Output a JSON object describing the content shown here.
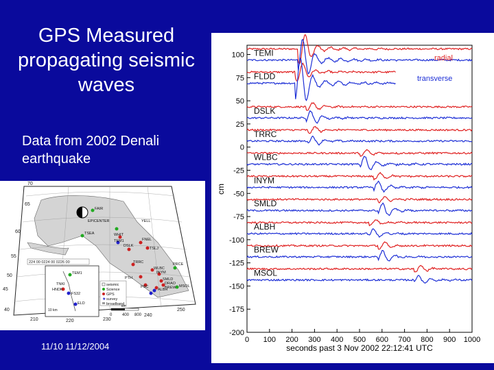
{
  "slide": {
    "title": "GPS Measured propagating seismic waves",
    "subtitle": "Data from 2002 Denali earthquake",
    "footer": "11/10 11/12/2004"
  },
  "map": {
    "lat_labels": [
      "70",
      "65",
      "60",
      "55",
      "50",
      "45",
      "40"
    ],
    "lon_labels": [
      "210",
      "220",
      "230",
      "240",
      "250"
    ],
    "site_labels": [
      "FAIR",
      "EPICENTER",
      "TSEA",
      "YELL",
      "WHIT",
      "TEM1",
      "FNEL",
      "TSLJ",
      "DSLK",
      "TRRC",
      "PRCE",
      "WLBC",
      "INYM",
      "PTH",
      "SMLD",
      "DRAO",
      "ALBH",
      "BREW",
      "MSOL",
      "PSC",
      "TNKI",
      "HNDK",
      "FS32",
      "ELD"
    ],
    "legend": [
      "seismic",
      "Science",
      "GPS",
      "survey",
      "broadband"
    ],
    "scale_labels": [
      "0",
      "400",
      "800",
      "km"
    ],
    "inset_scale": "10 km",
    "banner": "224 00 0224 00 0226 00"
  },
  "chart_data": {
    "type": "line",
    "xlabel": "seconds past 3 Nov 2002 22:12:41 UTC",
    "ylabel": "cm",
    "xlim": [
      0,
      1000
    ],
    "ylim": [
      -200,
      110
    ],
    "x_ticks": [
      0,
      100,
      200,
      300,
      400,
      500,
      600,
      700,
      800,
      900,
      1000
    ],
    "y_ticks": [
      -200,
      -175,
      -150,
      -125,
      -100,
      -75,
      -50,
      -25,
      0,
      25,
      50,
      75,
      100
    ],
    "legend": [
      {
        "label": "radial",
        "color": "#e02020"
      },
      {
        "label": "transverse",
        "color": "#1d2fd6"
      }
    ],
    "stations": [
      {
        "name": "TEMI",
        "offset": 100,
        "xmax": 1000,
        "arrival": 245,
        "amp_r": 14,
        "amp_t": 18
      },
      {
        "name": "FLDD",
        "offset": 75,
        "xmax": 660,
        "arrival": 235,
        "amp_r": 8,
        "amp_t": 22
      },
      {
        "name": "DSLK",
        "offset": 37.5,
        "xmax": 1000,
        "arrival": 280,
        "amp_r": 4,
        "amp_t": 6
      },
      {
        "name": "TRRC",
        "offset": 12.5,
        "xmax": 1000,
        "arrival": 290,
        "amp_r": 3,
        "amp_t": 4
      },
      {
        "name": "WLBC",
        "offset": -12.5,
        "xmax": 1000,
        "arrival": 520,
        "amp_r": 3,
        "amp_t": 7
      },
      {
        "name": "INYM",
        "offset": -37.5,
        "xmax": 1000,
        "arrival": 580,
        "amp_r": 3,
        "amp_t": 5
      },
      {
        "name": "SMLD",
        "offset": -62.5,
        "xmax": 1000,
        "arrival": 600,
        "amp_r": 3,
        "amp_t": 6
      },
      {
        "name": "ALBH",
        "offset": -87.5,
        "xmax": 1000,
        "arrival": 560,
        "amp_r": 3,
        "amp_t": 4
      },
      {
        "name": "BREW",
        "offset": -112.5,
        "xmax": 1000,
        "arrival": 600,
        "amp_r": 3,
        "amp_t": 5
      },
      {
        "name": "MSOL",
        "offset": -137.5,
        "xmax": 1000,
        "arrival": 760,
        "amp_r": 3,
        "amp_t": 4
      }
    ],
    "radial_baseline_shift": 6,
    "transverse_baseline_shift": -6
  },
  "colors": {
    "background": "#0a0a9c",
    "radial": "#e02020",
    "transverse": "#1d2fd6"
  }
}
